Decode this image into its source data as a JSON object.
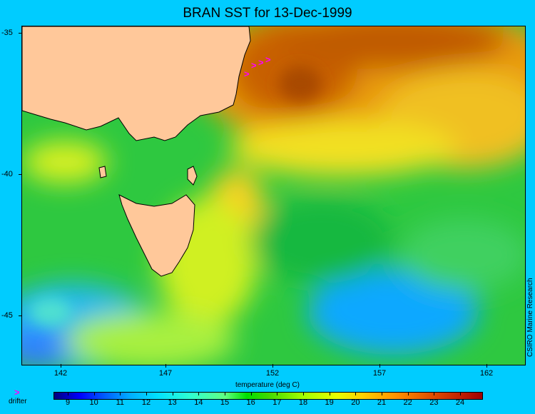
{
  "title": "BRAN SST for 13-Dec-1999",
  "credit": "CSIRO Marine Research",
  "xlabel": "temperature (deg C)",
  "legend": {
    "symbol": ">",
    "label": "drifter",
    "color": "#ff00ff"
  },
  "y_ticks": [
    "-35",
    "-40",
    "-45"
  ],
  "x_ticks": [
    "142",
    "147",
    "152",
    "157",
    "162"
  ],
  "colorbar_ticks": [
    "9",
    "10",
    "11",
    "12",
    "13",
    "14",
    "15",
    "16",
    "17",
    "18",
    "19",
    "20",
    "21",
    "22",
    "23",
    "24"
  ],
  "colors": {
    "background": "#00ccff",
    "land": "#ffc89a",
    "warm": "#c86000",
    "cool": "#0064ff",
    "mid": "#22c040"
  }
}
